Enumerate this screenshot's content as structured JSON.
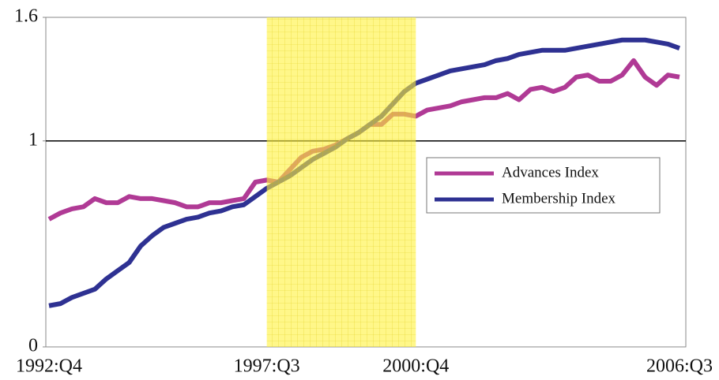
{
  "chart_data": {
    "type": "line",
    "categories": [
      "1992:Q4",
      null,
      null,
      null,
      null,
      null,
      null,
      null,
      null,
      null,
      null,
      null,
      null,
      null,
      null,
      null,
      null,
      null,
      null,
      "1997:Q3",
      null,
      null,
      null,
      null,
      null,
      null,
      null,
      null,
      null,
      null,
      null,
      null,
      "2000:Q4",
      null,
      null,
      null,
      null,
      null,
      null,
      null,
      null,
      null,
      null,
      null,
      null,
      null,
      null,
      null,
      null,
      null,
      null,
      null,
      null,
      null,
      null,
      "2006:Q3"
    ],
    "series": [
      {
        "name": "Advances Index",
        "color": "#b03a95",
        "values": [
          0.62,
          0.65,
          0.67,
          0.68,
          0.72,
          0.7,
          0.7,
          0.73,
          0.72,
          0.72,
          0.71,
          0.7,
          0.68,
          0.68,
          0.7,
          0.7,
          0.71,
          0.72,
          0.8,
          0.81,
          0.8,
          0.86,
          0.92,
          0.95,
          0.96,
          0.98,
          1.01,
          1.04,
          1.08,
          1.08,
          1.13,
          1.13,
          1.12,
          1.15,
          1.16,
          1.17,
          1.19,
          1.2,
          1.21,
          1.21,
          1.23,
          1.2,
          1.25,
          1.26,
          1.24,
          1.26,
          1.31,
          1.32,
          1.29,
          1.29,
          1.32,
          1.39,
          1.31,
          1.27,
          1.32,
          1.31
        ]
      },
      {
        "name": "Membership Index",
        "color": "#2e3192",
        "values": [
          0.2,
          0.21,
          0.24,
          0.26,
          0.28,
          0.33,
          0.37,
          0.41,
          0.49,
          0.54,
          0.58,
          0.6,
          0.62,
          0.63,
          0.65,
          0.66,
          0.68,
          0.69,
          0.73,
          0.77,
          0.8,
          0.83,
          0.87,
          0.91,
          0.94,
          0.97,
          1.01,
          1.04,
          1.08,
          1.12,
          1.18,
          1.24,
          1.28,
          1.3,
          1.32,
          1.34,
          1.35,
          1.36,
          1.37,
          1.39,
          1.4,
          1.42,
          1.43,
          1.44,
          1.44,
          1.44,
          1.45,
          1.46,
          1.47,
          1.48,
          1.49,
          1.49,
          1.49,
          1.48,
          1.47,
          1.45
        ]
      }
    ],
    "ylim": [
      0,
      1.6
    ],
    "yticks": [
      0,
      1,
      1.6
    ],
    "reference_line": 1,
    "shaded_range": {
      "from": "1997:Q3",
      "to": "2000:Q4",
      "color": "#fff23a"
    },
    "legend": "center right"
  }
}
